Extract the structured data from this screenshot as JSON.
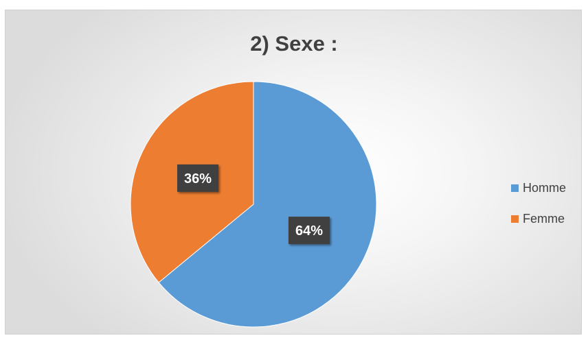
{
  "chart_data": {
    "type": "pie",
    "title": "2) Sexe :",
    "categories": [
      "Homme",
      "Femme"
    ],
    "values": [
      64,
      36
    ],
    "data_labels": [
      "64%",
      "36%"
    ],
    "colors": [
      "#5b9bd5",
      "#ed7d31"
    ],
    "legend_position": "right"
  }
}
